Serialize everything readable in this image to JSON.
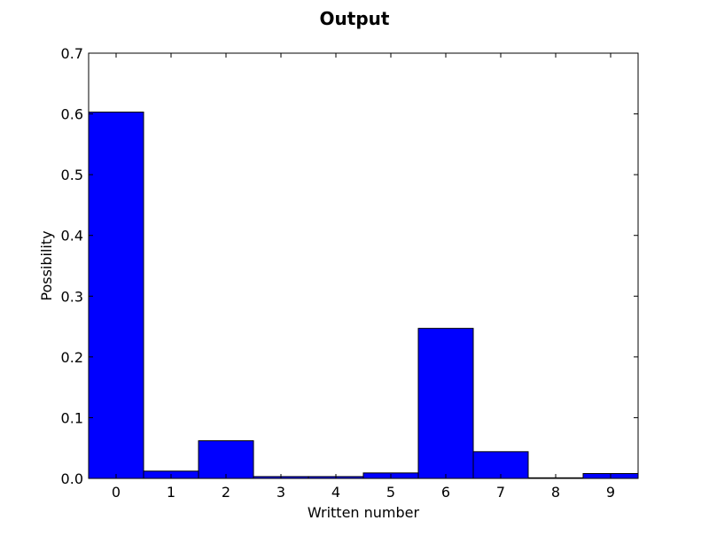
{
  "chart_data": {
    "type": "bar",
    "title": "Output",
    "xlabel": "Written number",
    "ylabel": "Possibility",
    "categories": [
      "0",
      "1",
      "2",
      "3",
      "4",
      "5",
      "6",
      "7",
      "8",
      "9"
    ],
    "values": [
      0.603,
      0.012,
      0.062,
      0.003,
      0.003,
      0.009,
      0.247,
      0.044,
      0.001,
      0.008
    ],
    "ylim": [
      0,
      0.7
    ],
    "yticks": [
      "0.0",
      "0.1",
      "0.2",
      "0.3",
      "0.4",
      "0.5",
      "0.6",
      "0.7"
    ],
    "bar_color": "#0000ff",
    "edge_color": "#000000",
    "grid": false,
    "legend": "none"
  }
}
